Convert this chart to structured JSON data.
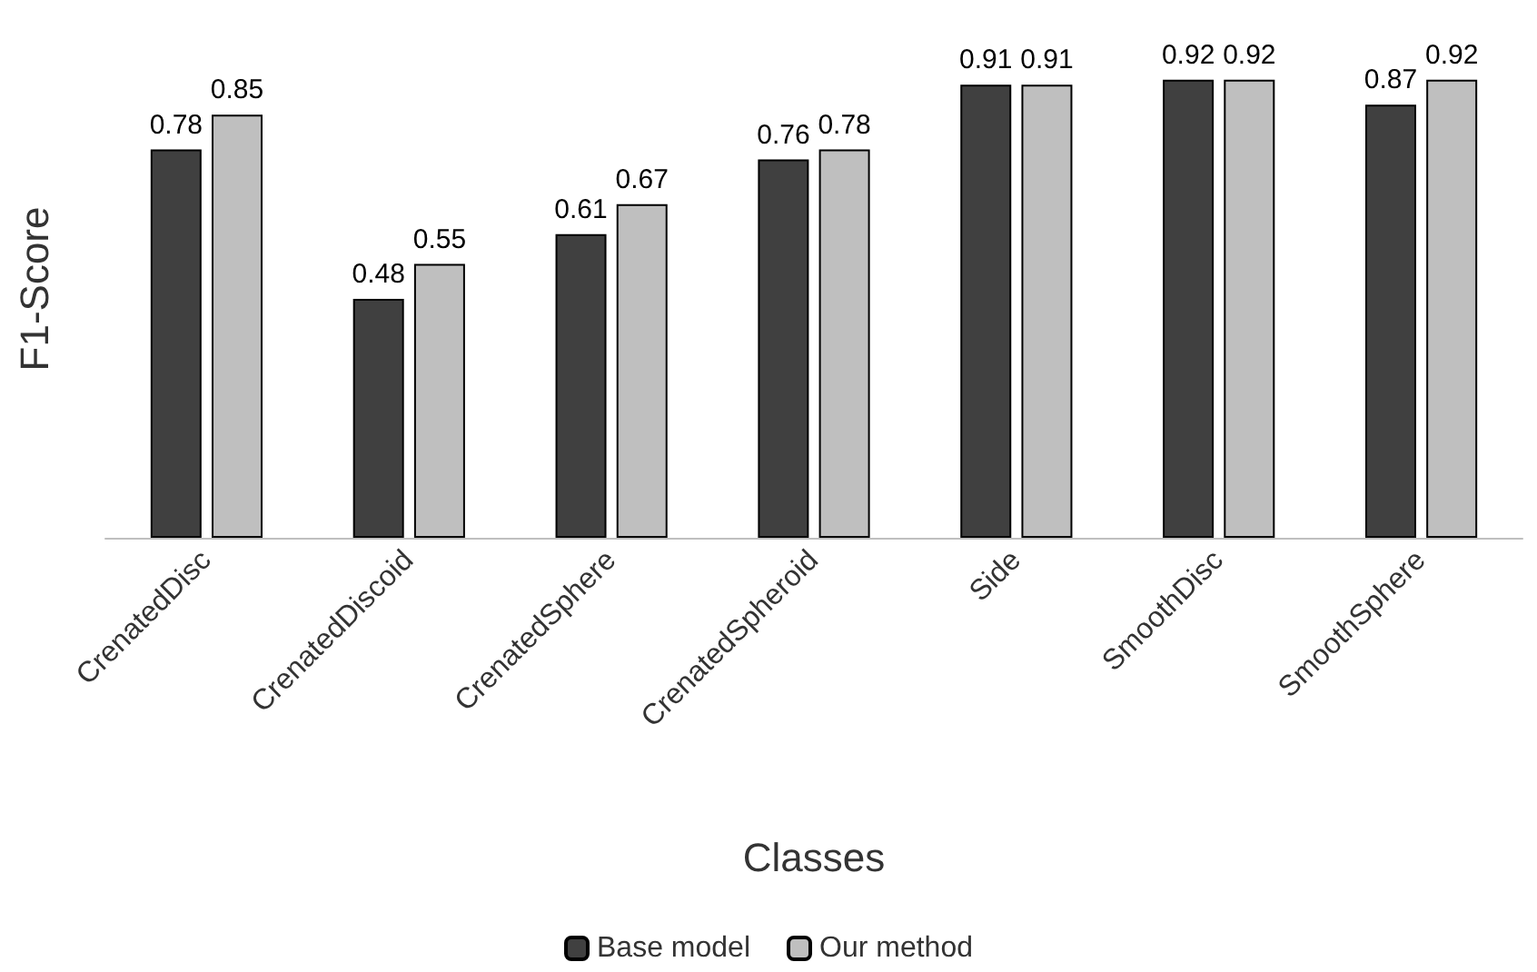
{
  "chart_data": {
    "type": "bar",
    "xlabel": "Classes",
    "ylabel": "F1-Score",
    "categories": [
      "CrenatedDisc",
      "CrenatedDiscoid",
      "CrenatedSphere",
      "CrenatedSpheroid",
      "Side",
      "SmoothDisc",
      "SmoothSphere"
    ],
    "series": [
      {
        "name": "Base model",
        "color": "#404040",
        "values": [
          0.78,
          0.48,
          0.61,
          0.76,
          0.91,
          0.92,
          0.87
        ]
      },
      {
        "name": "Our method",
        "color": "#bfbfbf",
        "values": [
          0.85,
          0.55,
          0.67,
          0.78,
          0.91,
          0.92,
          0.92
        ]
      }
    ],
    "data_labels": true,
    "grid": false,
    "legend": "bottom",
    "tick_labels": "x"
  }
}
